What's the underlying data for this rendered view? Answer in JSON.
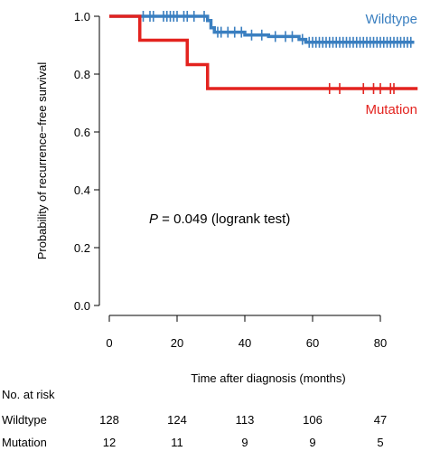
{
  "chart_data": {
    "type": "line",
    "subtype": "kaplan-meier",
    "xlabel": "Time after diagnosis (months)",
    "ylabel": "Probability of recurrence−free survival",
    "xlim": [
      0,
      90
    ],
    "ylim": [
      0,
      1.0
    ],
    "x_ticks": [
      0,
      20,
      40,
      60,
      80
    ],
    "y_ticks": [
      0.0,
      0.2,
      0.4,
      0.6,
      0.8,
      1.0
    ],
    "y_tick_labels": [
      "0.0",
      "0.2",
      "0.4",
      "0.6",
      "0.8",
      "1.0"
    ],
    "grid": false,
    "annotation": {
      "p_symbol": "P",
      "text": " = 0.049 (logrank test)"
    },
    "series": [
      {
        "name": "Wildtype",
        "color": "#3a7fc0",
        "steps": [
          [
            0,
            1.0
          ],
          [
            29,
            0.985
          ],
          [
            30,
            0.96
          ],
          [
            31,
            0.945
          ],
          [
            40,
            0.935
          ],
          [
            47,
            0.93
          ],
          [
            56,
            0.92
          ],
          [
            58,
            0.91
          ],
          [
            90,
            0.91
          ]
        ],
        "censor_x": [
          10,
          12,
          13,
          16,
          17,
          18,
          19,
          20,
          22,
          23,
          25,
          28,
          32,
          33,
          35,
          37,
          39,
          42,
          45,
          49,
          52,
          54,
          57,
          59,
          60,
          61,
          62,
          63,
          64,
          65,
          66,
          67,
          68,
          69,
          70,
          71,
          72,
          73,
          74,
          75,
          76,
          77,
          78,
          79,
          80,
          81,
          82,
          83,
          84,
          85,
          86,
          87,
          88,
          89
        ]
      },
      {
        "name": "Mutation",
        "color": "#e3231f",
        "steps": [
          [
            0,
            1.0
          ],
          [
            9,
            0.917
          ],
          [
            23,
            0.833
          ],
          [
            29,
            0.75
          ],
          [
            91,
            0.75
          ]
        ],
        "censor_x": [
          65,
          68,
          75,
          78,
          80,
          83,
          84
        ]
      }
    ],
    "risk_table": {
      "title": "No. at risk",
      "times": [
        0,
        20,
        40,
        60,
        80
      ],
      "rows": [
        {
          "label": "Wildtype",
          "counts": [
            "128",
            "124",
            "113",
            "106",
            "47"
          ]
        },
        {
          "label": "Mutation",
          "counts": [
            "12",
            "11",
            "9",
            "9",
            "5"
          ]
        }
      ]
    }
  }
}
